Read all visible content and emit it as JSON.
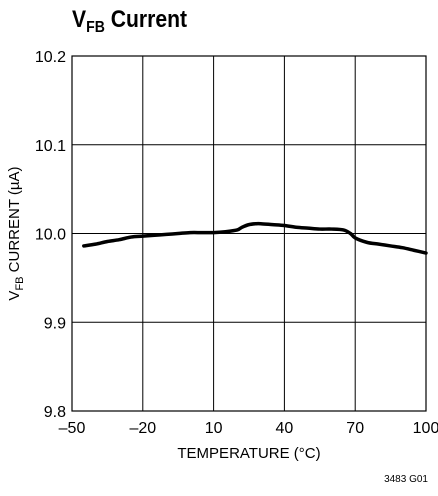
{
  "title": {
    "main": "V",
    "sub": "FB",
    "rest": " Current"
  },
  "figure_code": "3483 G01",
  "chart_data": {
    "type": "line",
    "xlabel": "TEMPERATURE (°C)",
    "ylabel": {
      "main": "V",
      "sub": "FB",
      "rest": " CURRENT (µA)"
    },
    "xlim": [
      -50,
      100
    ],
    "ylim": [
      9.8,
      10.2
    ],
    "x_ticks": [
      "–50",
      "–20",
      "10",
      "40",
      "70",
      "100"
    ],
    "y_ticks": [
      "10.2",
      "10.1",
      "10.0",
      "9.9",
      "9.8"
    ],
    "x_tick_values": [
      -50,
      -20,
      10,
      40,
      70,
      100
    ],
    "y_tick_values": [
      10.2,
      10.1,
      10.0,
      9.9,
      9.8
    ],
    "grid": true,
    "series": [
      {
        "x": [
          -45,
          -40,
          -35,
          -30,
          -25,
          -20,
          -15,
          -10,
          -5,
          0,
          5,
          10,
          15,
          20,
          22,
          25,
          28,
          30,
          35,
          40,
          45,
          50,
          55,
          60,
          65,
          68,
          70,
          75,
          80,
          85,
          90,
          95,
          100
        ],
        "y": [
          9.986,
          9.988,
          9.991,
          9.993,
          9.996,
          9.997,
          9.998,
          9.999,
          10.0,
          10.001,
          10.001,
          10.001,
          10.002,
          10.004,
          10.007,
          10.01,
          10.011,
          10.011,
          10.01,
          10.009,
          10.007,
          10.006,
          10.005,
          10.005,
          10.004,
          10.0,
          9.995,
          9.99,
          9.988,
          9.986,
          9.984,
          9.981,
          9.978
        ]
      }
    ]
  }
}
